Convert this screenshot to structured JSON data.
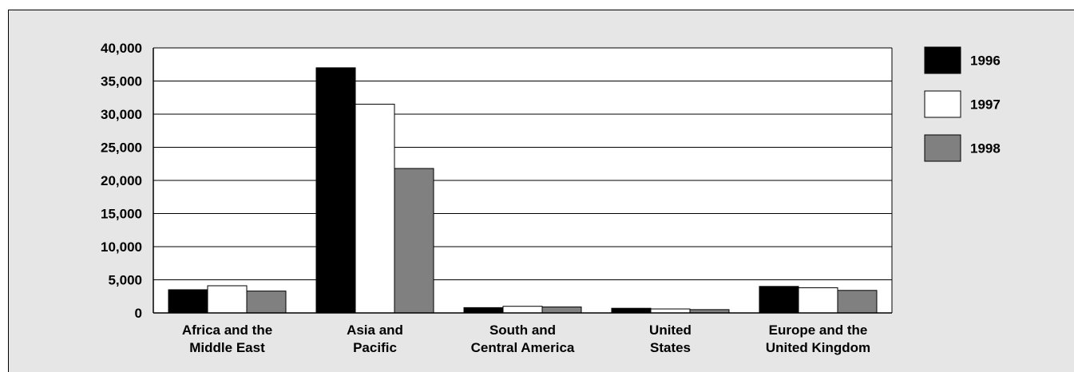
{
  "chart_data": {
    "type": "bar",
    "title": "",
    "xlabel": "",
    "ylabel": "",
    "categories": [
      [
        "Africa and the",
        "Middle East"
      ],
      [
        "Asia and",
        "Pacific"
      ],
      [
        "South and",
        "Central America"
      ],
      [
        "United",
        "States"
      ],
      [
        "Europe and the",
        "United Kingdom"
      ]
    ],
    "series": [
      {
        "name": "1996",
        "color": "#000000",
        "values": [
          3500,
          37000,
          800,
          700,
          4000
        ]
      },
      {
        "name": "1997",
        "color": "#ffffff",
        "values": [
          4100,
          31500,
          1000,
          600,
          3800
        ]
      },
      {
        "name": "1998",
        "color": "#808080",
        "values": [
          3300,
          21800,
          900,
          500,
          3400
        ]
      }
    ],
    "ylim": [
      0,
      40000
    ],
    "yticks": [
      0,
      5000,
      10000,
      15000,
      20000,
      25000,
      30000,
      35000,
      40000
    ],
    "ytick_labels": [
      "0",
      "5,000",
      "10,000",
      "15,000",
      "20,000",
      "25,000",
      "30,000",
      "35,000",
      "40,000"
    ],
    "grid": true,
    "legend_position": "top-right",
    "colors": {
      "background": "#e6e6e6",
      "plot_background": "#ffffff",
      "axis": "#000000"
    }
  }
}
